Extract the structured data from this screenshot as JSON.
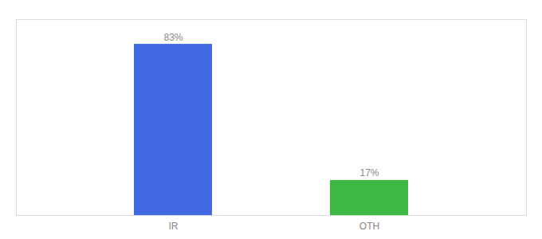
{
  "chart_data": {
    "type": "bar",
    "categories": [
      "IR",
      "OTH"
    ],
    "values": [
      83,
      17
    ],
    "value_labels": [
      "83%",
      "17%"
    ],
    "colors": [
      "#4169e1",
      "#3cb843"
    ],
    "ylim": [
      0,
      95
    ],
    "data_labels": true,
    "tick_labels": "x",
    "grid": false
  }
}
